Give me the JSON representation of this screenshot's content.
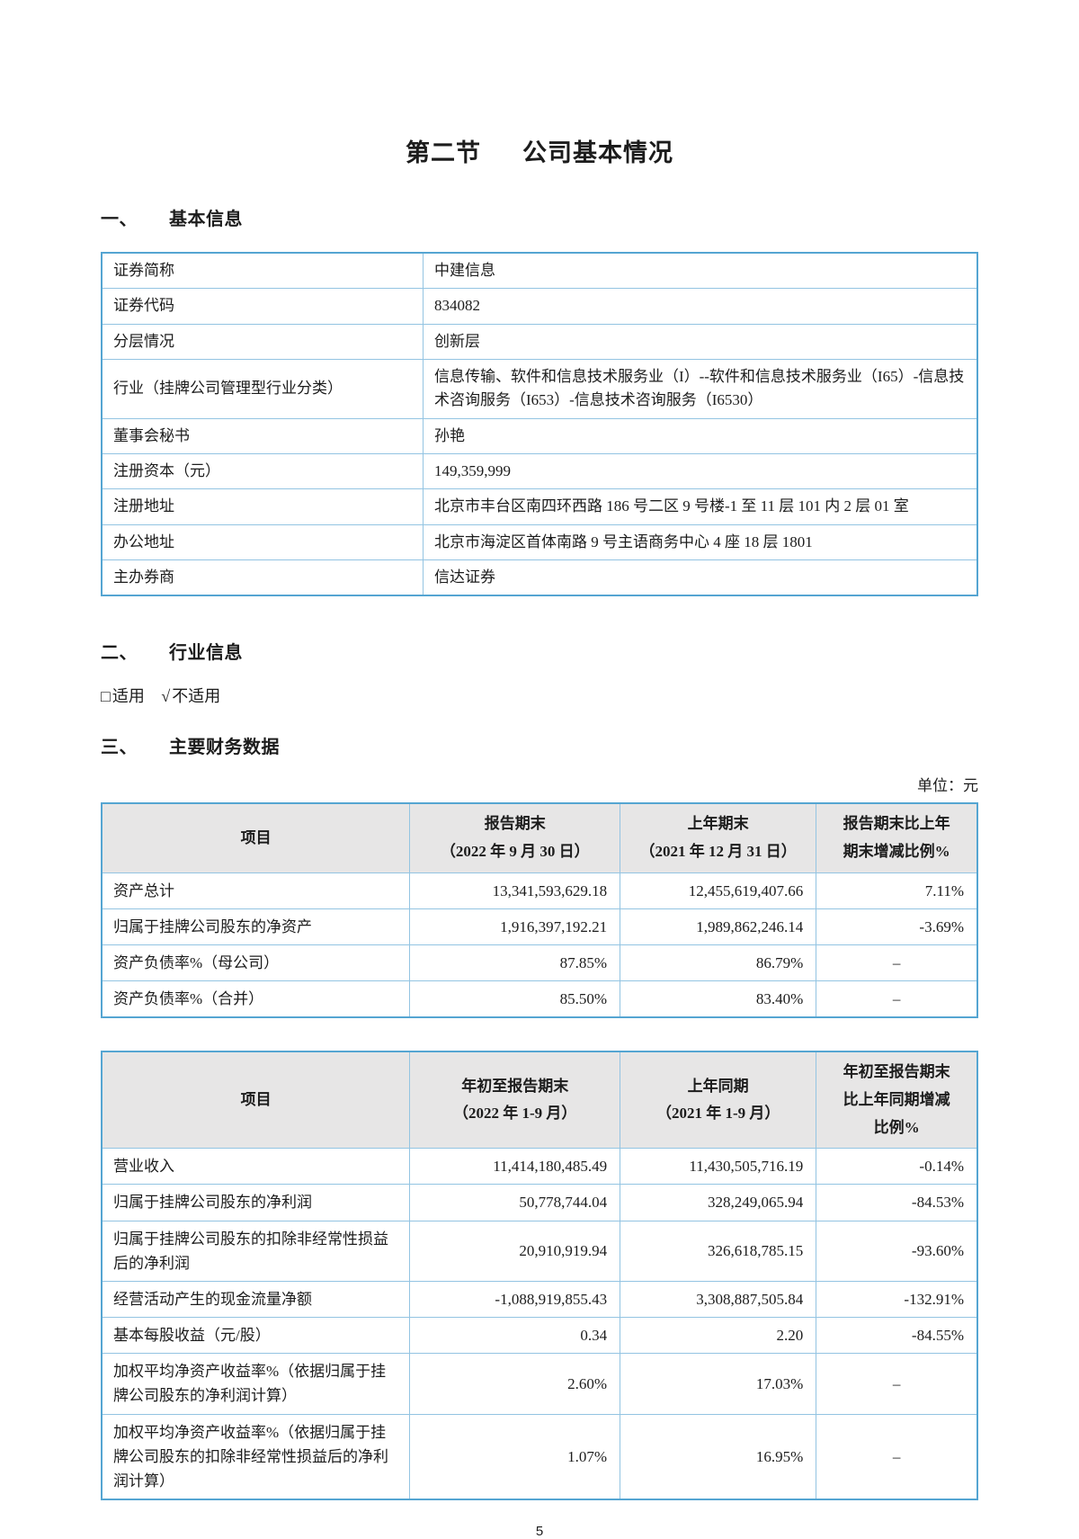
{
  "page": {
    "number": "5"
  },
  "title": {
    "part1": "第二节",
    "part2": "公司基本情况"
  },
  "sections": {
    "basic_info": {
      "index": "一、",
      "label": "基本信息"
    },
    "industry_info": {
      "index": "二、",
      "label": "行业信息"
    },
    "financial": {
      "index": "三、",
      "label": "主要财务数据"
    }
  },
  "basic_info_table": {
    "rows": [
      {
        "label": "证券简称",
        "value": "中建信息"
      },
      {
        "label": "证券代码",
        "value": "834082"
      },
      {
        "label": "分层情况",
        "value": "创新层"
      },
      {
        "label": "行业（挂牌公司管理型行业分类）",
        "value": "信息传输、软件和信息技术服务业（I）--软件和信息技术服务业（I65）-信息技术咨询服务（I653）-信息技术咨询服务（I6530）"
      },
      {
        "label": "董事会秘书",
        "value": "孙艳"
      },
      {
        "label": "注册资本（元）",
        "value": "149,359,999"
      },
      {
        "label": "注册地址",
        "value": "北京市丰台区南四环西路 186 号二区 9 号楼-1 至 11 层 101 内 2 层 01 室"
      },
      {
        "label": "办公地址",
        "value": "北京市海淀区首体南路 9 号主语商务中心 4 座 18 层 1801"
      },
      {
        "label": "主办券商",
        "value": "信达证券"
      }
    ]
  },
  "industry": {
    "applicable": {
      "symbol": "□",
      "label": "适用"
    },
    "not_applicable": {
      "symbol": "√",
      "label": "不适用"
    }
  },
  "unit_label": "单位：元",
  "financial_table_period_end": {
    "headers": [
      [
        "项目"
      ],
      [
        "报告期末",
        "（2022 年 9 月 30 日）"
      ],
      [
        "上年期末",
        "（2021 年 12 月 31 日）"
      ],
      [
        "报告期末比上年",
        "期末增减比例%"
      ]
    ],
    "rows": [
      {
        "label": "资产总计",
        "values": [
          "13,341,593,629.18",
          "12,455,619,407.66",
          "7.11%"
        ]
      },
      {
        "label": "归属于挂牌公司股东的净资产",
        "values": [
          "1,916,397,192.21",
          "1,989,862,246.14",
          "-3.69%"
        ]
      },
      {
        "label": "资产负债率%（母公司）",
        "values": [
          "87.85%",
          "86.79%",
          "–"
        ]
      },
      {
        "label": "资产负债率%（合并）",
        "values": [
          "85.50%",
          "83.40%",
          "–"
        ]
      }
    ]
  },
  "financial_table_ytd": {
    "headers": [
      [
        "项目"
      ],
      [
        "年初至报告期末",
        "（2022 年 1-9 月）"
      ],
      [
        "上年同期",
        "（2021 年 1-9 月）"
      ],
      [
        "年初至报告期末",
        "比上年同期增减",
        "比例%"
      ]
    ],
    "rows": [
      {
        "label": "营业收入",
        "values": [
          "11,414,180,485.49",
          "11,430,505,716.19",
          "-0.14%"
        ]
      },
      {
        "label": "归属于挂牌公司股东的净利润",
        "values": [
          "50,778,744.04",
          "328,249,065.94",
          "-84.53%"
        ]
      },
      {
        "label": "归属于挂牌公司股东的扣除非经常性损益后的净利润",
        "values": [
          "20,910,919.94",
          "326,618,785.15",
          "-93.60%"
        ]
      },
      {
        "label": "经营活动产生的现金流量净额",
        "values": [
          "-1,088,919,855.43",
          "3,308,887,505.84",
          "-132.91%"
        ]
      },
      {
        "label": "基本每股收益（元/股）",
        "values": [
          "0.34",
          "2.20",
          "-84.55%"
        ]
      },
      {
        "label": "加权平均净资产收益率%（依据归属于挂牌公司股东的净利润计算）",
        "values": [
          "2.60%",
          "17.03%",
          "–"
        ]
      },
      {
        "label": "加权平均净资产收益率%（依据归属于挂牌公司股东的扣除非经常性损益后的净利润计算）",
        "values": [
          "1.07%",
          "16.95%",
          "–"
        ]
      }
    ]
  },
  "layout_hints": {
    "border_color_outer": "#55a5d2",
    "border_color_inner": "#93c4e2",
    "header_bg": "#e7e6e6",
    "info_col_widths": [
      "36.7%",
      "63.3%"
    ],
    "fin_col_widths": [
      "35.2%",
      "24.0%",
      "22.4%",
      "18.4%"
    ]
  }
}
